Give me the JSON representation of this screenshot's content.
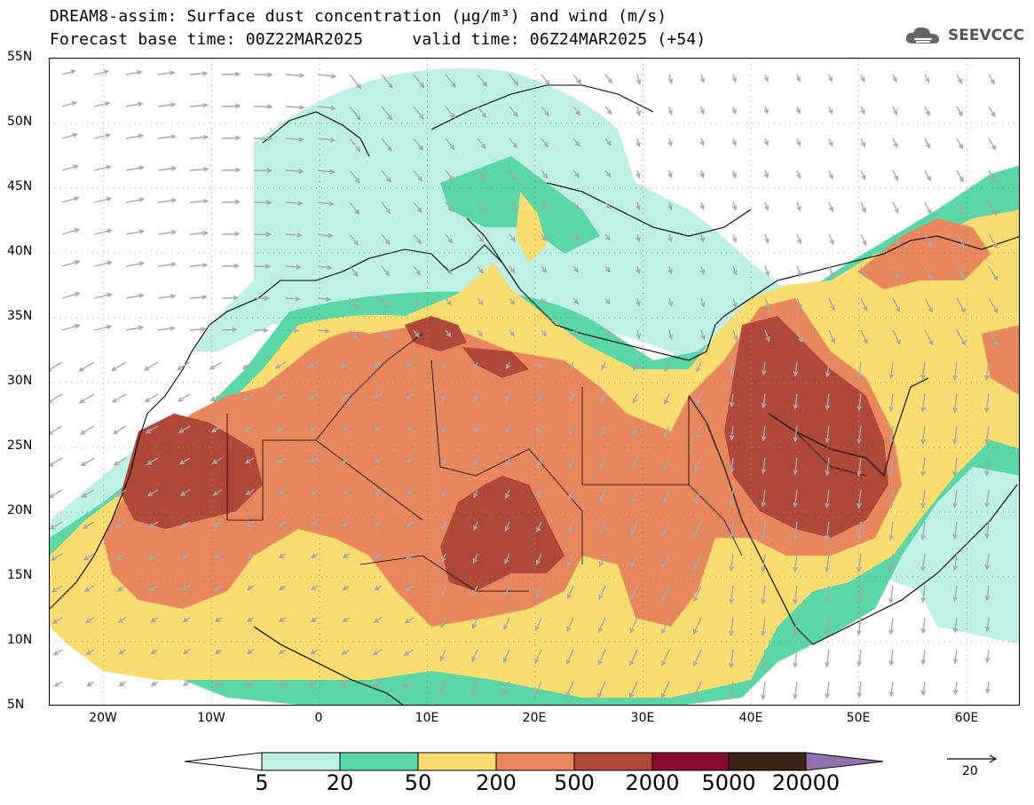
{
  "header": {
    "title_line1": "DREAM8-assim: Surface dust concentration (μg/m³) and wind (m/s)",
    "title_line2": "Forecast base time: 00Z22MAR2025     valid time: 06Z24MAR2025 (+54)"
  },
  "logo": {
    "text": "SEEVCCC",
    "icon": "cloud-icon"
  },
  "map": {
    "lon_range": [
      -25,
      65
    ],
    "lat_range": [
      5,
      55
    ],
    "lat_labels": [
      "55N",
      "50N",
      "45N",
      "40N",
      "35N",
      "30N",
      "25N",
      "20N",
      "15N",
      "10N",
      "5N"
    ],
    "lon_labels": [
      "20W",
      "10W",
      "0",
      "10E",
      "20E",
      "30E",
      "40E",
      "50E",
      "60E"
    ]
  },
  "colorbar": {
    "labels": [
      "5",
      "20",
      "50",
      "200",
      "500",
      "2000",
      "5000",
      "20000"
    ],
    "colors": [
      "#ffffff",
      "#bff0e6",
      "#5ad6a7",
      "#f8dc70",
      "#e8875e",
      "#b0483a",
      "#840a2e",
      "#3a2414",
      "#9470b0"
    ]
  },
  "wind_reference": {
    "label": "20",
    "units": "m/s"
  },
  "colors": {
    "land_border": "#000000",
    "wind_arrow": "#a8a8a8",
    "grid": "#888888"
  }
}
